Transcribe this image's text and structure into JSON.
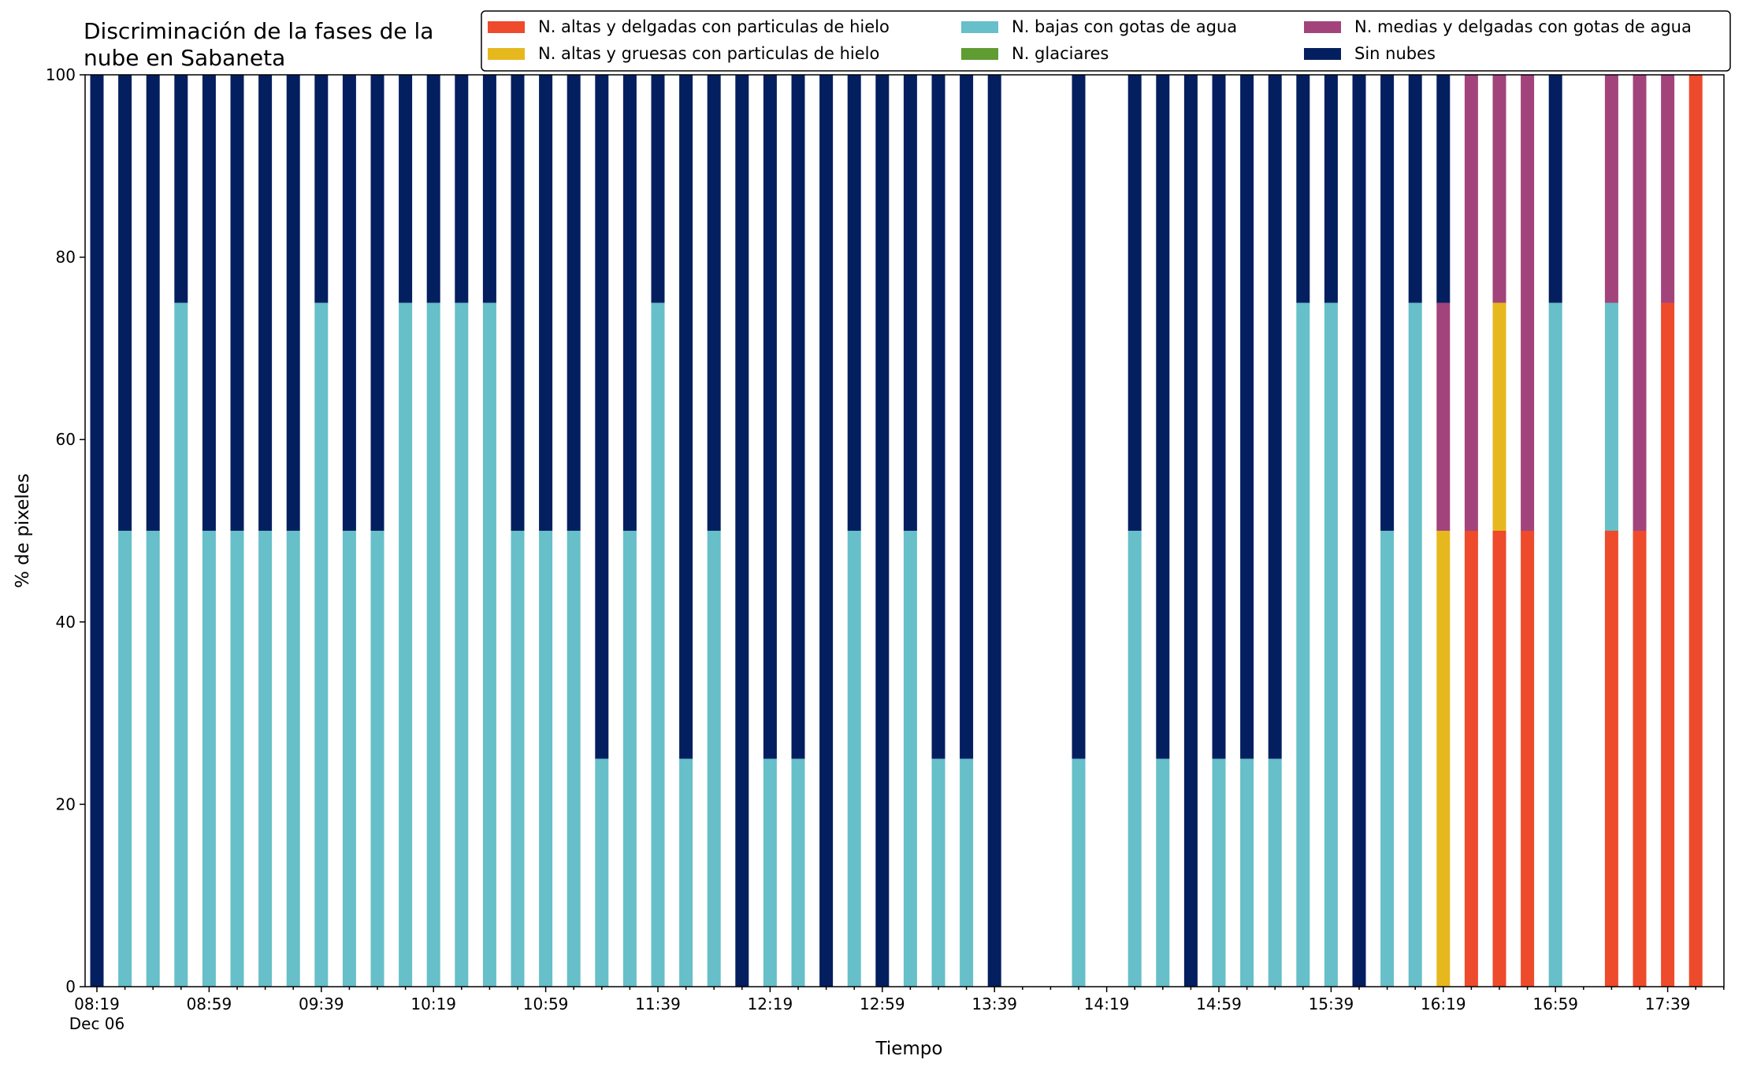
{
  "chart_data": {
    "type": "bar",
    "stacked": true,
    "title_lines": [
      "Discriminación de la fases de la",
      "nube en Sabaneta"
    ],
    "xlabel": "Tiempo",
    "ylabel": "% de pixeles",
    "ylim": [
      0,
      100
    ],
    "yticks": [
      0,
      20,
      40,
      60,
      80,
      100
    ],
    "grid": false,
    "legend_location": "top-right",
    "xtick_labels": [
      "08:19",
      "08:59",
      "09:39",
      "10:19",
      "10:59",
      "11:39",
      "12:19",
      "12:59",
      "13:39",
      "14:19",
      "14:59",
      "15:39",
      "16:19",
      "16:59",
      "17:39"
    ],
    "xtick_sublabel": "Dec 06",
    "minutes_per_slot": 10,
    "first_label_slot": 0,
    "label_every": 4,
    "series": [
      {
        "name": "N. altas y delgadas con particulas de hielo",
        "color": "#ee4a2c"
      },
      {
        "name": "N. altas y gruesas con particulas de hielo",
        "color": "#e6b81e"
      },
      {
        "name": "N. bajas con gotas de agua",
        "color": "#66bfc9"
      },
      {
        "name": "N. glaciares",
        "color": "#5f9c31"
      },
      {
        "name": "N. medias y delgadas con gotas de agua",
        "color": "#a2447b"
      },
      {
        "name": "Sin nubes",
        "color": "#041f5f"
      }
    ],
    "bars": [
      {
        "slot": 0,
        "values": [
          0,
          0,
          0,
          0,
          0,
          100
        ]
      },
      {
        "slot": 1,
        "values": [
          0,
          0,
          50,
          0,
          0,
          50
        ]
      },
      {
        "slot": 2,
        "values": [
          0,
          0,
          50,
          0,
          0,
          50
        ]
      },
      {
        "slot": 3,
        "values": [
          0,
          0,
          75,
          0,
          0,
          25
        ]
      },
      {
        "slot": 4,
        "values": [
          0,
          0,
          50,
          0,
          0,
          50
        ]
      },
      {
        "slot": 5,
        "values": [
          0,
          0,
          50,
          0,
          0,
          50
        ]
      },
      {
        "slot": 6,
        "values": [
          0,
          0,
          50,
          0,
          0,
          50
        ]
      },
      {
        "slot": 7,
        "values": [
          0,
          0,
          50,
          0,
          0,
          50
        ]
      },
      {
        "slot": 8,
        "values": [
          0,
          0,
          75,
          0,
          0,
          25
        ]
      },
      {
        "slot": 9,
        "values": [
          0,
          0,
          50,
          0,
          0,
          50
        ]
      },
      {
        "slot": 10,
        "values": [
          0,
          0,
          50,
          0,
          0,
          50
        ]
      },
      {
        "slot": 11,
        "values": [
          0,
          0,
          75,
          0,
          0,
          25
        ]
      },
      {
        "slot": 12,
        "values": [
          0,
          0,
          75,
          0,
          0,
          25
        ]
      },
      {
        "slot": 13,
        "values": [
          0,
          0,
          75,
          0,
          0,
          25
        ]
      },
      {
        "slot": 14,
        "values": [
          0,
          0,
          75,
          0,
          0,
          25
        ]
      },
      {
        "slot": 15,
        "values": [
          0,
          0,
          50,
          0,
          0,
          50
        ]
      },
      {
        "slot": 16,
        "values": [
          0,
          0,
          50,
          0,
          0,
          50
        ]
      },
      {
        "slot": 17,
        "values": [
          0,
          0,
          50,
          0,
          0,
          50
        ]
      },
      {
        "slot": 18,
        "values": [
          0,
          0,
          25,
          0,
          0,
          75
        ]
      },
      {
        "slot": 19,
        "values": [
          0,
          0,
          50,
          0,
          0,
          50
        ]
      },
      {
        "slot": 20,
        "values": [
          0,
          0,
          75,
          0,
          0,
          25
        ]
      },
      {
        "slot": 21,
        "values": [
          0,
          0,
          25,
          0,
          0,
          75
        ]
      },
      {
        "slot": 22,
        "values": [
          0,
          0,
          50,
          0,
          0,
          50
        ]
      },
      {
        "slot": 23,
        "values": [
          0,
          0,
          0,
          0,
          0,
          100
        ]
      },
      {
        "slot": 24,
        "values": [
          0,
          0,
          25,
          0,
          0,
          75
        ]
      },
      {
        "slot": 25,
        "values": [
          0,
          0,
          25,
          0,
          0,
          75
        ]
      },
      {
        "slot": 26,
        "values": [
          0,
          0,
          0,
          0,
          0,
          100
        ]
      },
      {
        "slot": 27,
        "values": [
          0,
          0,
          50,
          0,
          0,
          50
        ]
      },
      {
        "slot": 28,
        "values": [
          0,
          0,
          0,
          0,
          0,
          100
        ]
      },
      {
        "slot": 29,
        "values": [
          0,
          0,
          50,
          0,
          0,
          50
        ]
      },
      {
        "slot": 30,
        "values": [
          0,
          0,
          25,
          0,
          0,
          75
        ]
      },
      {
        "slot": 31,
        "values": [
          0,
          0,
          25,
          0,
          0,
          75
        ]
      },
      {
        "slot": 32,
        "values": [
          0,
          0,
          0,
          0,
          0,
          100
        ]
      },
      {
        "slot": 35,
        "values": [
          0,
          0,
          25,
          0,
          0,
          75
        ]
      },
      {
        "slot": 37,
        "values": [
          0,
          0,
          50,
          0,
          0,
          50
        ]
      },
      {
        "slot": 38,
        "values": [
          0,
          0,
          25,
          0,
          0,
          75
        ]
      },
      {
        "slot": 39,
        "values": [
          0,
          0,
          0,
          0,
          0,
          100
        ]
      },
      {
        "slot": 40,
        "values": [
          0,
          0,
          25,
          0,
          0,
          75
        ]
      },
      {
        "slot": 41,
        "values": [
          0,
          0,
          25,
          0,
          0,
          75
        ]
      },
      {
        "slot": 42,
        "values": [
          0,
          0,
          25,
          0,
          0,
          75
        ]
      },
      {
        "slot": 43,
        "values": [
          0,
          0,
          75,
          0,
          0,
          25
        ]
      },
      {
        "slot": 44,
        "values": [
          0,
          0,
          75,
          0,
          0,
          25
        ]
      },
      {
        "slot": 45,
        "values": [
          0,
          0,
          0,
          0,
          0,
          100
        ]
      },
      {
        "slot": 46,
        "values": [
          0,
          0,
          50,
          0,
          0,
          50
        ]
      },
      {
        "slot": 47,
        "values": [
          0,
          0,
          75,
          0,
          0,
          25
        ]
      },
      {
        "slot": 48,
        "values": [
          0,
          50,
          0,
          0,
          25,
          25
        ]
      },
      {
        "slot": 49,
        "values": [
          50,
          0,
          0,
          0,
          50,
          0
        ]
      },
      {
        "slot": 50,
        "values": [
          50,
          25,
          0,
          0,
          25,
          0
        ]
      },
      {
        "slot": 51,
        "values": [
          50,
          0,
          0,
          0,
          50,
          0
        ]
      },
      {
        "slot": 52,
        "values": [
          0,
          0,
          75,
          0,
          0,
          25
        ]
      },
      {
        "slot": 54,
        "values": [
          50,
          0,
          25,
          0,
          25,
          0
        ]
      },
      {
        "slot": 55,
        "values": [
          50,
          0,
          0,
          0,
          50,
          0
        ]
      },
      {
        "slot": 56,
        "values": [
          75,
          0,
          0,
          0,
          25,
          0
        ]
      },
      {
        "slot": 57,
        "values": [
          100,
          0,
          0,
          0,
          0,
          0
        ]
      }
    ]
  }
}
